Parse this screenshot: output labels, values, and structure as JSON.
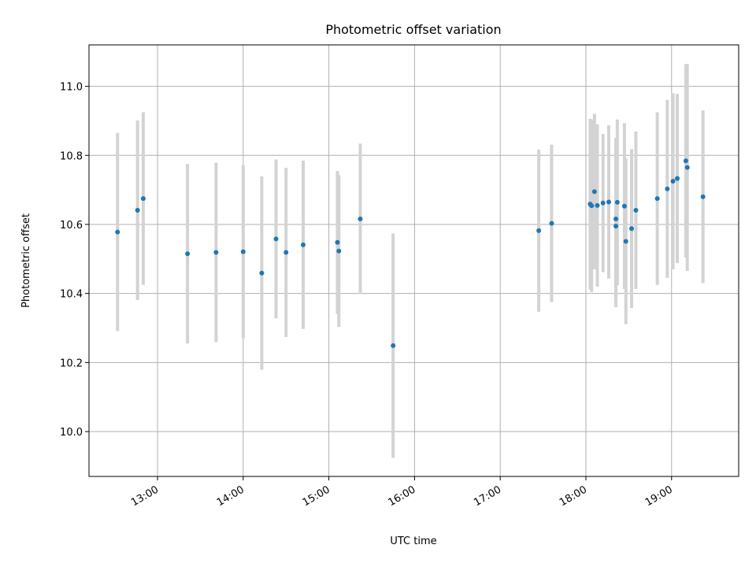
{
  "chart_data": {
    "type": "scatter",
    "title": "Photometric offset variation",
    "xlabel": "UTC time",
    "ylabel": "Photometric offset",
    "x_ticks": [
      "13:00",
      "14:00",
      "15:00",
      "16:00",
      "17:00",
      "18:00",
      "19:00"
    ],
    "y_ticks": [
      "10.0",
      "10.2",
      "10.4",
      "10.6",
      "10.8",
      "11.0"
    ],
    "xlim": [
      "12:12",
      "19:47"
    ],
    "ylim": [
      9.87,
      11.12
    ],
    "grid": true,
    "marker_color": "#1f77b4",
    "errorbar_color": "#d3d3d3",
    "points": [
      {
        "x": "12:32",
        "y": 10.578,
        "err": 0.287
      },
      {
        "x": "12:46",
        "y": 10.641,
        "err": 0.26
      },
      {
        "x": "12:50",
        "y": 10.675,
        "err": 0.25
      },
      {
        "x": "13:21",
        "y": 10.515,
        "err": 0.26
      },
      {
        "x": "13:41",
        "y": 10.519,
        "err": 0.26
      },
      {
        "x": "14:00",
        "y": 10.521,
        "err": 0.25
      },
      {
        "x": "14:13",
        "y": 10.459,
        "err": 0.28
      },
      {
        "x": "14:23",
        "y": 10.558,
        "err": 0.23
      },
      {
        "x": "14:30",
        "y": 10.519,
        "err": 0.245
      },
      {
        "x": "14:42",
        "y": 10.541,
        "err": 0.244
      },
      {
        "x": "15:06",
        "y": 10.548,
        "err": 0.207
      },
      {
        "x": "15:07",
        "y": 10.523,
        "err": 0.22
      },
      {
        "x": "15:22",
        "y": 10.616,
        "err": 0.218
      },
      {
        "x": "15:45",
        "y": 10.249,
        "err": 0.325
      },
      {
        "x": "17:27",
        "y": 10.582,
        "err": 0.235
      },
      {
        "x": "17:36",
        "y": 10.603,
        "err": 0.228
      },
      {
        "x": "18:03",
        "y": 10.659,
        "err": 0.247
      },
      {
        "x": "18:04",
        "y": 10.654,
        "err": 0.25
      },
      {
        "x": "18:06",
        "y": 10.695,
        "err": 0.225
      },
      {
        "x": "18:08",
        "y": 10.655,
        "err": 0.235
      },
      {
        "x": "18:12",
        "y": 10.662,
        "err": 0.2
      },
      {
        "x": "18:16",
        "y": 10.665,
        "err": 0.222
      },
      {
        "x": "18:21",
        "y": 10.616,
        "err": 0.235
      },
      {
        "x": "18:21",
        "y": 10.595,
        "err": 0.235
      },
      {
        "x": "18:22",
        "y": 10.664,
        "err": 0.24
      },
      {
        "x": "18:27",
        "y": 10.653,
        "err": 0.24
      },
      {
        "x": "18:28",
        "y": 10.551,
        "err": 0.24
      },
      {
        "x": "18:32",
        "y": 10.588,
        "err": 0.23
      },
      {
        "x": "18:35",
        "y": 10.641,
        "err": 0.228
      },
      {
        "x": "18:50",
        "y": 10.675,
        "err": 0.25
      },
      {
        "x": "18:57",
        "y": 10.703,
        "err": 0.258
      },
      {
        "x": "19:01",
        "y": 10.725,
        "err": 0.255
      },
      {
        "x": "19:04",
        "y": 10.733,
        "err": 0.245
      },
      {
        "x": "19:10",
        "y": 10.784,
        "err": 0.28
      },
      {
        "x": "19:11",
        "y": 10.765,
        "err": 0.3
      },
      {
        "x": "19:22",
        "y": 10.68,
        "err": 0.25
      }
    ]
  }
}
